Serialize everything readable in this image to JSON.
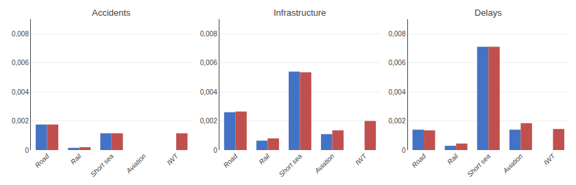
{
  "chart_data": [
    {
      "type": "bar",
      "title": "Accidents",
      "categories": [
        "Road",
        "Rail",
        "Short sea",
        "Aviation",
        "IWT"
      ],
      "series": [
        {
          "color": "#4472C4",
          "values": [
            0.00175,
            0.00015,
            0.00115,
            0.0,
            0.0
          ]
        },
        {
          "color": "#C0504D",
          "values": [
            0.00175,
            0.0002,
            0.00115,
            0.0,
            0.00115
          ]
        }
      ],
      "ylim": [
        0,
        0.009
      ],
      "yticks": [
        0,
        {
          "value": 0.002,
          "label": "0,002"
        },
        {
          "value": 0.004,
          "label": "0,004"
        },
        {
          "value": 0.006,
          "label": "0,006"
        },
        {
          "value": 0.008,
          "label": "0,008"
        }
      ],
      "grid": true
    },
    {
      "type": "bar",
      "title": "Infrastructure",
      "categories": [
        "Road",
        "Rail",
        "Short sea",
        "Aviation",
        "IWT"
      ],
      "series": [
        {
          "color": "#4472C4",
          "values": [
            0.0026,
            0.00065,
            0.0054,
            0.0011,
            0.0
          ]
        },
        {
          "color": "#C0504D",
          "values": [
            0.00265,
            0.0008,
            0.00535,
            0.00135,
            0.002
          ]
        }
      ],
      "ylim": [
        0,
        0.009
      ],
      "yticks": [
        0,
        {
          "value": 0.002,
          "label": "0,002"
        },
        {
          "value": 0.004,
          "label": "0,004"
        },
        {
          "value": 0.006,
          "label": "0,006"
        },
        {
          "value": 0.008,
          "label": "0,008"
        }
      ],
      "grid": true
    },
    {
      "type": "bar",
      "title": "Delays",
      "categories": [
        "Road",
        "Rail",
        "Short sea",
        "Aviation",
        "IWT"
      ],
      "series": [
        {
          "color": "#4472C4",
          "values": [
            0.0014,
            0.0003,
            0.0071,
            0.0014,
            0.0
          ]
        },
        {
          "color": "#C0504D",
          "values": [
            0.00135,
            0.00045,
            0.0071,
            0.00185,
            0.00145
          ]
        }
      ],
      "ylim": [
        0,
        0.009
      ],
      "yticks": [
        0,
        {
          "value": 0.002,
          "label": "0,002"
        },
        {
          "value": 0.004,
          "label": "0,004"
        },
        {
          "value": 0.006,
          "label": "0,006"
        },
        {
          "value": 0.008,
          "label": "0,008"
        }
      ],
      "grid": true
    }
  ]
}
